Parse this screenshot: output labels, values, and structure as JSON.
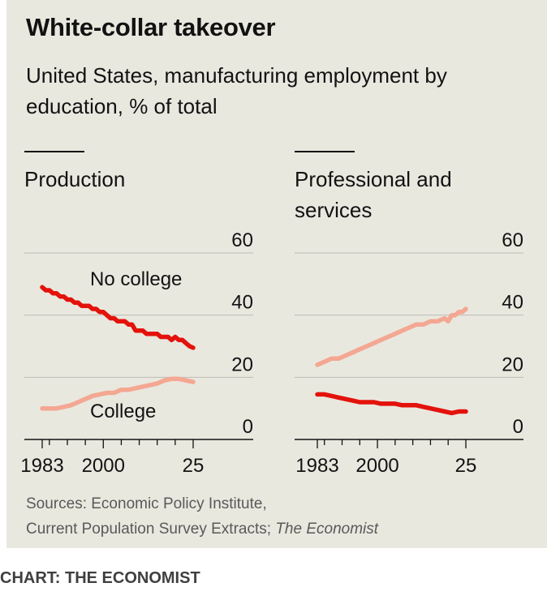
{
  "title": "White-collar takeover",
  "subtitle": "United States, manufacturing employment by education, % of total",
  "source": {
    "line1": "Sources: Economic Policy Institute,",
    "line2_plain": "Current Population Survey Extracts; ",
    "line2_italic": "The Economist"
  },
  "credit": "CHART: THE ECONOMIST",
  "colors": {
    "no_college": "#e3120b",
    "college": "#f4a792",
    "background": "#e9e8df",
    "grid": "#b7b7b7"
  },
  "chart_data": [
    {
      "type": "line",
      "title": "Production",
      "title_lines": [
        "Production"
      ],
      "ylim": [
        0,
        60
      ],
      "yticks": [
        0,
        20,
        40,
        60
      ],
      "xlim": [
        1983,
        2025
      ],
      "xtick_labels": [
        "1983",
        "2000",
        "25"
      ],
      "grid": true,
      "series": [
        {
          "name": "No college",
          "color": "#e3120b",
          "x": [
            1983,
            1984,
            1985,
            1986,
            1987,
            1988,
            1989,
            1990,
            1991,
            1992,
            1993,
            1994,
            1995,
            1996,
            1997,
            1998,
            1999,
            2000,
            2001,
            2002,
            2003,
            2004,
            2005,
            2006,
            2007,
            2008,
            2009,
            2010,
            2011,
            2012,
            2013,
            2014,
            2015,
            2016,
            2017,
            2018,
            2019,
            2020,
            2021,
            2022,
            2023,
            2024,
            2025
          ],
          "values": [
            49,
            48,
            48,
            47,
            47,
            46,
            46,
            45,
            45,
            44,
            44,
            43,
            43,
            43,
            42,
            42,
            41,
            41,
            40,
            39,
            39,
            38,
            38,
            38,
            37,
            37,
            35,
            35,
            35,
            34,
            34,
            34,
            34,
            33,
            33,
            33,
            32,
            33,
            32,
            32,
            31,
            30,
            29.5
          ]
        },
        {
          "name": "College",
          "color": "#f4a792",
          "x": [
            1983,
            1985,
            1987,
            1989,
            1991,
            1993,
            1995,
            1997,
            1999,
            2001,
            2003,
            2005,
            2007,
            2009,
            2011,
            2013,
            2015,
            2017,
            2019,
            2021,
            2023,
            2025
          ],
          "values": [
            10,
            10,
            10,
            10.5,
            11,
            12,
            13,
            14,
            14.5,
            15,
            15,
            16,
            16,
            16.5,
            17,
            17.5,
            18,
            19,
            19.5,
            19.5,
            19,
            18.5
          ]
        }
      ]
    },
    {
      "type": "line",
      "title": "Professional and services",
      "title_lines": [
        "Professional and",
        "services"
      ],
      "ylim": [
        0,
        60
      ],
      "yticks": [
        0,
        20,
        40,
        60
      ],
      "xlim": [
        1983,
        2025
      ],
      "xtick_labels": [
        "1983",
        "2000",
        "25"
      ],
      "grid": true,
      "series": [
        {
          "name": "College",
          "color": "#f4a792",
          "x": [
            1983,
            1985,
            1987,
            1989,
            1991,
            1993,
            1995,
            1997,
            1999,
            2001,
            2003,
            2005,
            2007,
            2009,
            2011,
            2013,
            2015,
            2017,
            2019,
            2020,
            2021,
            2022,
            2023,
            2024,
            2025
          ],
          "values": [
            24,
            25,
            26,
            26,
            27,
            28,
            29,
            30,
            31,
            32,
            33,
            34,
            35,
            36,
            37,
            37,
            38,
            38,
            39,
            38,
            40,
            40,
            41,
            41,
            42
          ]
        },
        {
          "name": "No college",
          "color": "#e3120b",
          "x": [
            1983,
            1985,
            1987,
            1989,
            1991,
            1993,
            1995,
            1997,
            1999,
            2001,
            2003,
            2005,
            2007,
            2009,
            2011,
            2013,
            2015,
            2017,
            2019,
            2021,
            2023,
            2025
          ],
          "values": [
            14.5,
            14.5,
            14,
            13.5,
            13,
            12.5,
            12,
            12,
            12,
            11.5,
            11.5,
            11.5,
            11,
            11,
            11,
            10.5,
            10,
            9.5,
            9,
            8.5,
            9,
            9
          ]
        }
      ]
    }
  ]
}
